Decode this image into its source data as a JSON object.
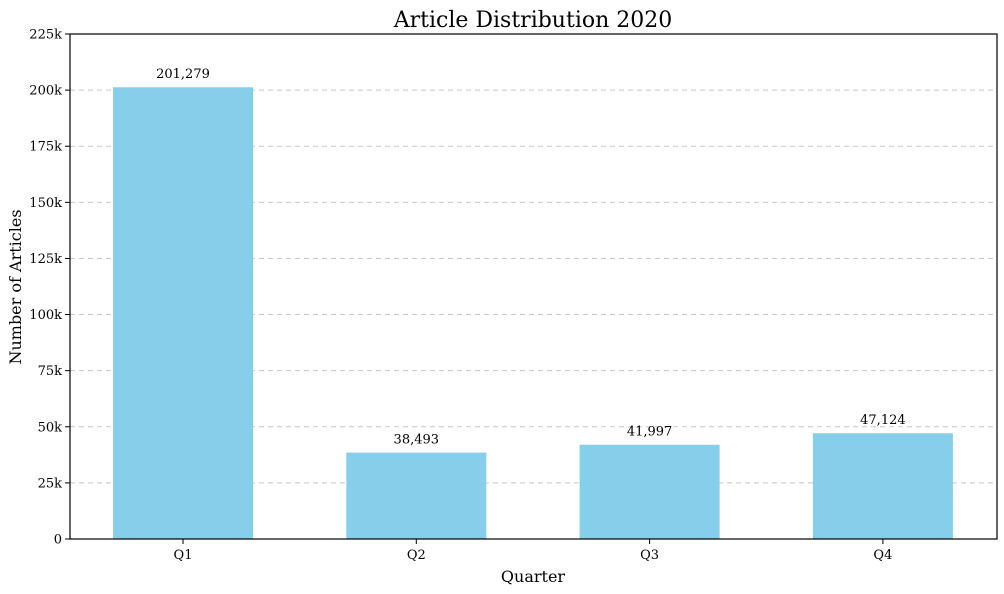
{
  "chart_data": {
    "type": "bar",
    "title": "Article Distribution 2020",
    "xlabel": "Quarter",
    "ylabel": "Number of Articles",
    "categories": [
      "Q1",
      "Q2",
      "Q3",
      "Q4"
    ],
    "values": [
      201279,
      38493,
      41997,
      47124
    ],
    "value_labels": [
      "201,279",
      "38,493",
      "41,997",
      "47,124"
    ],
    "ylim": [
      0,
      225000
    ],
    "yticks": [
      0,
      25000,
      50000,
      75000,
      100000,
      125000,
      150000,
      175000,
      200000,
      225000
    ],
    "ytick_labels": [
      "0",
      "25k",
      "50k",
      "75k",
      "100k",
      "125k",
      "150k",
      "175k",
      "200k",
      "225k"
    ],
    "grid": "y-dashed",
    "bar_color": "#87ceeb"
  }
}
